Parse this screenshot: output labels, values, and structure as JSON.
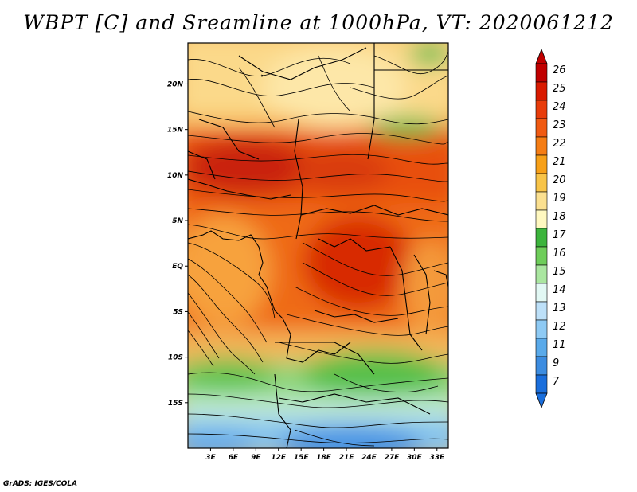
{
  "title": "WBPT [C] and Sreamline at 1000hPa, VT: 2020061212",
  "credit": "GrADS: IGES/COLA",
  "map": {
    "lat_labels": [
      "20N",
      "15N",
      "10N",
      "5N",
      "EQ",
      "5S",
      "10S",
      "15S"
    ],
    "lat_values": [
      20,
      15,
      10,
      5,
      0,
      -5,
      -10,
      -15
    ],
    "lon_labels": [
      "3E",
      "6E",
      "9E",
      "12E",
      "15E",
      "18E",
      "21E",
      "24E",
      "27E",
      "30E",
      "33E"
    ],
    "lon_values": [
      3,
      6,
      9,
      12,
      15,
      18,
      21,
      24,
      27,
      30,
      33
    ],
    "lon_range": [
      0,
      34.5
    ],
    "lat_range": [
      -20,
      24.5
    ]
  },
  "colorbar": {
    "levels": [
      "26",
      "25",
      "24",
      "23",
      "22",
      "21",
      "20",
      "19",
      "18",
      "17",
      "16",
      "15",
      "14",
      "13",
      "12",
      "11",
      "9",
      "7"
    ],
    "colors": [
      "#c00000",
      "#d91a00",
      "#e83c0a",
      "#f05a12",
      "#f57d14",
      "#f7a018",
      "#f8c448",
      "#fbe090",
      "#fff8c0",
      "#3cb43c",
      "#6ecd5a",
      "#aae6a0",
      "#e2f8f4",
      "#bde0f8",
      "#8ecaf4",
      "#5aaaea",
      "#3c8ce0",
      "#1a6edc"
    ]
  }
}
